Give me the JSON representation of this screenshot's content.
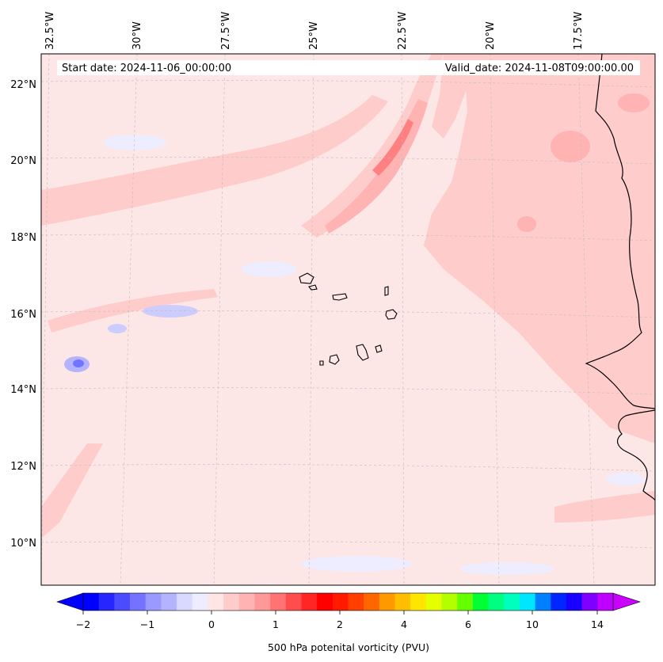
{
  "map": {
    "start_date_label": "Start date: 2024-11-06_00:00:00",
    "valid_date_label": "Valid_date: 2024-11-08T09:00:00.00",
    "longitude_labels": [
      {
        "lon": -32.5,
        "text": "32.5°W"
      },
      {
        "lon": -30.0,
        "text": "30°W"
      },
      {
        "lon": -27.5,
        "text": "27.5°W"
      },
      {
        "lon": -25.0,
        "text": "25°W"
      },
      {
        "lon": -22.5,
        "text": "22.5°W"
      },
      {
        "lon": -20.0,
        "text": "20°W"
      },
      {
        "lon": -17.5,
        "text": "17.5°W"
      }
    ],
    "latitude_labels": [
      {
        "lat": 22,
        "text": "22°N"
      },
      {
        "lat": 20,
        "text": "20°N"
      },
      {
        "lat": 18,
        "text": "18°N"
      },
      {
        "lat": 16,
        "text": "16°N"
      },
      {
        "lat": 14,
        "text": "14°N"
      },
      {
        "lat": 12,
        "text": "12°N"
      },
      {
        "lat": 10,
        "text": "10°N"
      }
    ],
    "background_color": "#fde6e6",
    "coastline_color": "#000000",
    "gridline_color": "#bdbdbd"
  },
  "colorbar": {
    "label": "500 hPa potenital vorticity (PVU)",
    "tick_labels": [
      "−2",
      "−1",
      "0",
      "1",
      "2",
      "4",
      "6",
      "10",
      "14"
    ],
    "extend": "both",
    "colors": [
      "#0000ff",
      "#2626ff",
      "#4c4cff",
      "#7373ff",
      "#9999ff",
      "#b3b3ff",
      "#d9d9ff",
      "#ededff",
      "#ffe6e6",
      "#ffcccc",
      "#ffb3b3",
      "#ff9999",
      "#ff7373",
      "#ff4c4c",
      "#ff2626",
      "#ff0000",
      "#ff1a00",
      "#ff4000",
      "#ff6600",
      "#ff9900",
      "#ffbf00",
      "#ffe600",
      "#e6ff00",
      "#b3ff00",
      "#66ff00",
      "#00ff33",
      "#00ff80",
      "#00ffbf",
      "#00e6ff",
      "#0080ff",
      "#0026ff",
      "#1a00ff",
      "#8000ff",
      "#bf00ff"
    ],
    "under_color": "#0000ff",
    "over_color": "#cc00ff"
  }
}
